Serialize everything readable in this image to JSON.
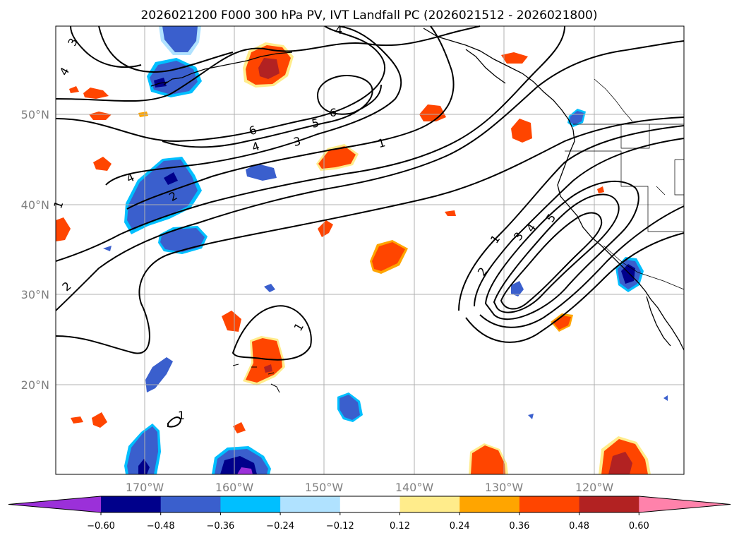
{
  "title": "2026021200 F000 300 hPa PV, IVT Landfall PC (2026021512 - 2026021800)",
  "latitude_labels": [
    "50°N",
    "40°N",
    "30°N",
    "20°N"
  ],
  "longitude_labels": [
    "170°W",
    "160°W",
    "150°W",
    "140°W",
    "130°W",
    "120°W"
  ],
  "colorbar": {
    "ticks": [
      "−0.60",
      "−0.48",
      "−0.36",
      "−0.24",
      "−0.12",
      "0.12",
      "0.24",
      "0.36",
      "0.48",
      "0.60"
    ],
    "colors": [
      "#9b30d9",
      "#00008b",
      "#3a5fcd",
      "#00bfff",
      "#b0e2ff",
      "#ffffff",
      "#ffec8b",
      "#ffa500",
      "#ff4500",
      "#b22222",
      "#ff82ab"
    ]
  },
  "contour_labels": {
    "c_3_nw": "3",
    "c_4_nw": "4",
    "c_4_top": "4",
    "c_6_ne": "6",
    "c_6_mid": "6",
    "c_5_mid": "5",
    "c_4_mid": "4",
    "c_3_mid": "3",
    "c_1_mid": "1",
    "c_4_low": "4",
    "c_2_low": "2",
    "c_1_w": "1",
    "c_2_sw": "2",
    "c_1_sub": "1",
    "c_1_s": "1",
    "c_1_e": "1",
    "c_2_e": "2",
    "c_3_e": "3",
    "c_4_e": "4",
    "c_5_e": "5"
  },
  "colors": {
    "neg_dark": "#00008b",
    "neg_mid": "#3a5fcd",
    "neg_light": "#00bfff",
    "pos_light": "#ffec8b",
    "pos_mid": "#ffa500",
    "pos_dark": "#ff4500",
    "pos_max": "#b22222",
    "contour": "#000000",
    "grid": "#b0b0b0"
  }
}
